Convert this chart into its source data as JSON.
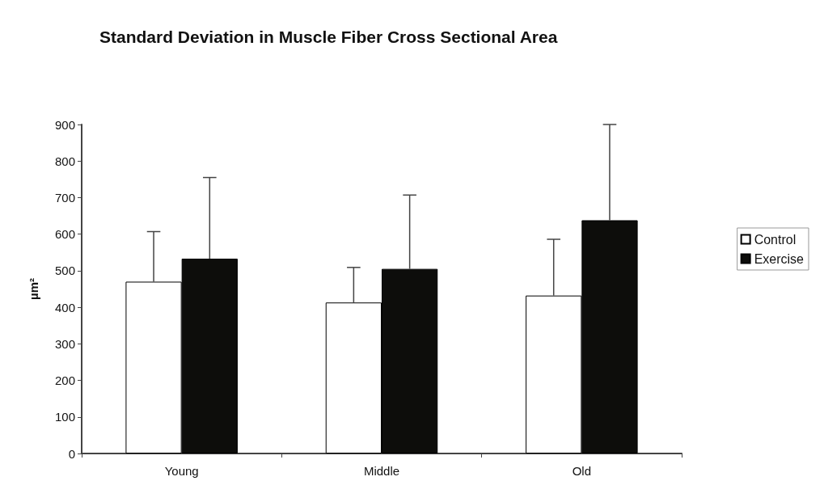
{
  "chart_data": {
    "type": "bar",
    "title": "Standard Deviation in Muscle Fiber Cross Sectional Area",
    "ylabel": "µm²",
    "categories": [
      "Young",
      "Middle",
      "Old"
    ],
    "series": [
      {
        "name": "Control",
        "color": "#ffffff",
        "values": [
          470,
          413,
          432
        ],
        "errors": [
          [
            470,
            607
          ],
          [
            413,
            509
          ],
          [
            432,
            586
          ]
        ]
      },
      {
        "name": "Exercise",
        "color": "#0d0d0b",
        "values": [
          533,
          505,
          638
        ],
        "errors": [
          [
            533,
            755
          ],
          [
            505,
            707
          ],
          [
            638,
            900
          ]
        ]
      }
    ],
    "ylim": [
      0,
      900
    ],
    "yticks": [
      0,
      100,
      200,
      300,
      400,
      500,
      600,
      700,
      800,
      900
    ],
    "grid": false,
    "legend": "right"
  }
}
